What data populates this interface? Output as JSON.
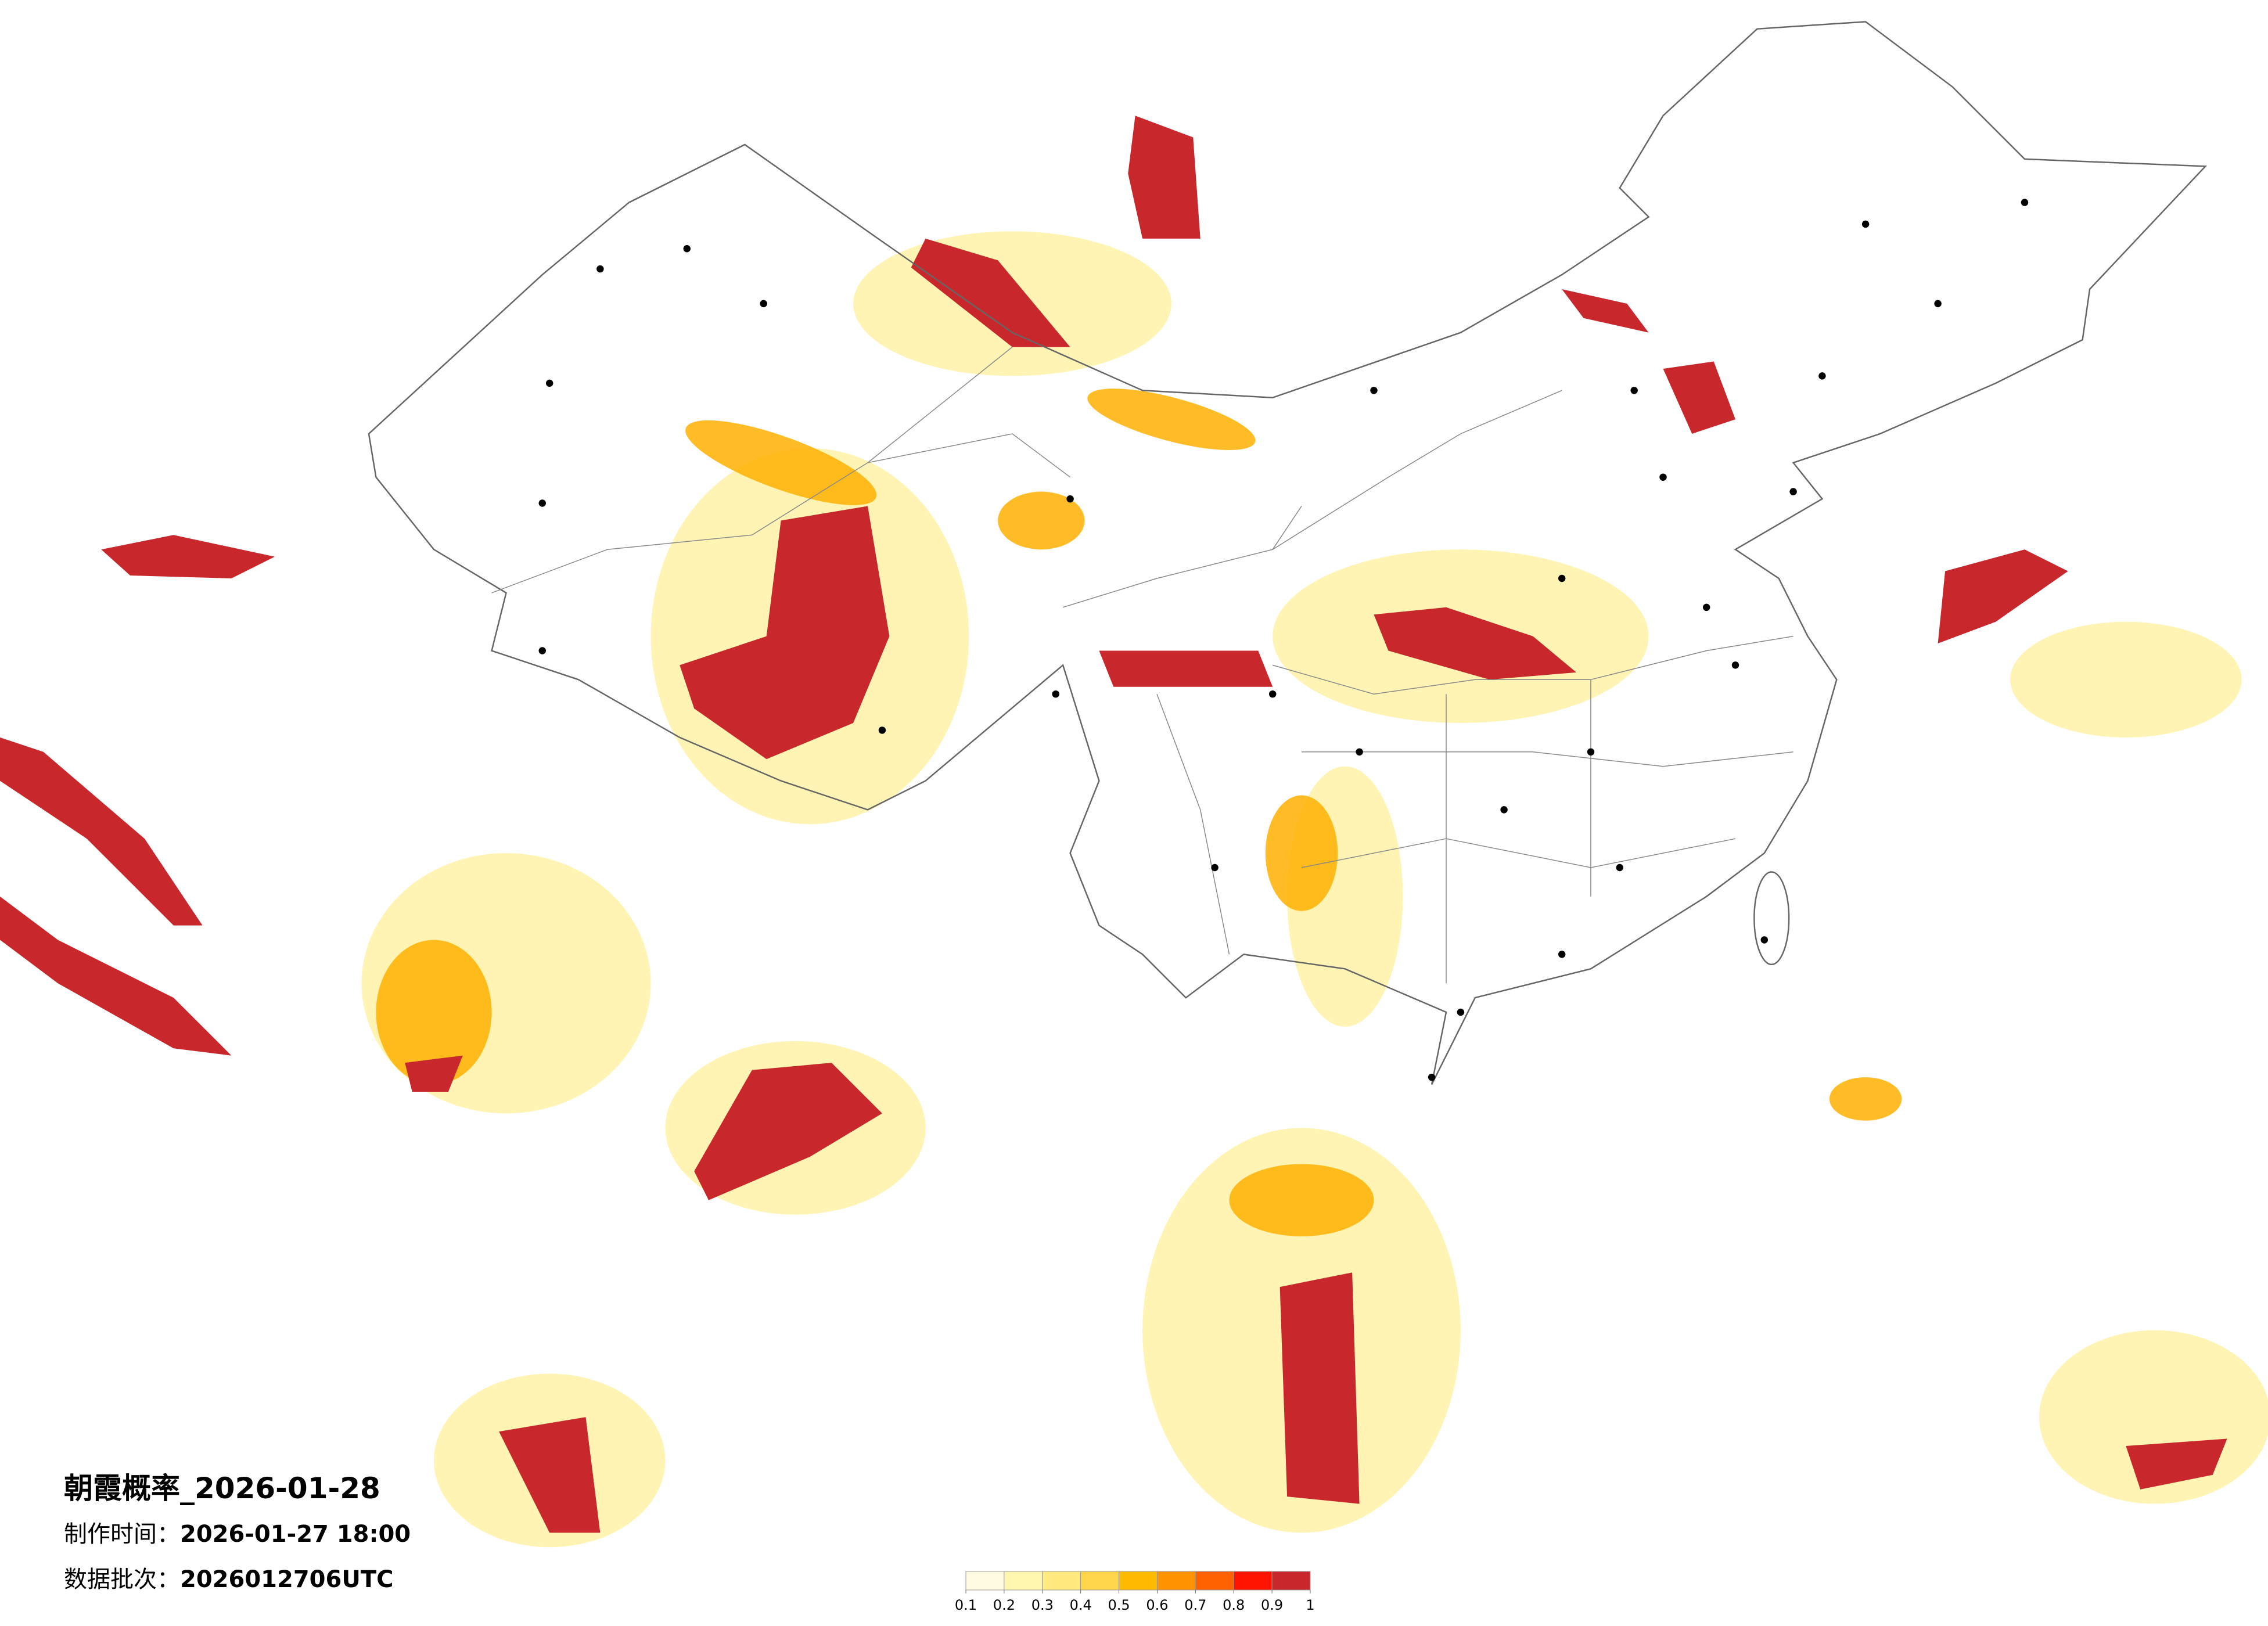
{
  "title": "朝霞概率_2026-01-28",
  "production": {
    "label": "制作时间：",
    "value": "2026-01-27 18:00"
  },
  "batch": {
    "label": "数据批次：",
    "value": "2026012706UTC"
  },
  "colorbar": {
    "colors": [
      "#fffbe0",
      "#fff6b0",
      "#ffeb80",
      "#ffd54a",
      "#ffbb00",
      "#ff9400",
      "#ff6000",
      "#ff1400",
      "#c8282c"
    ],
    "ticks": [
      0.1,
      0.2,
      0.3,
      0.4,
      0.5,
      0.6,
      0.7,
      0.8,
      0.9,
      1
    ]
  }
}
